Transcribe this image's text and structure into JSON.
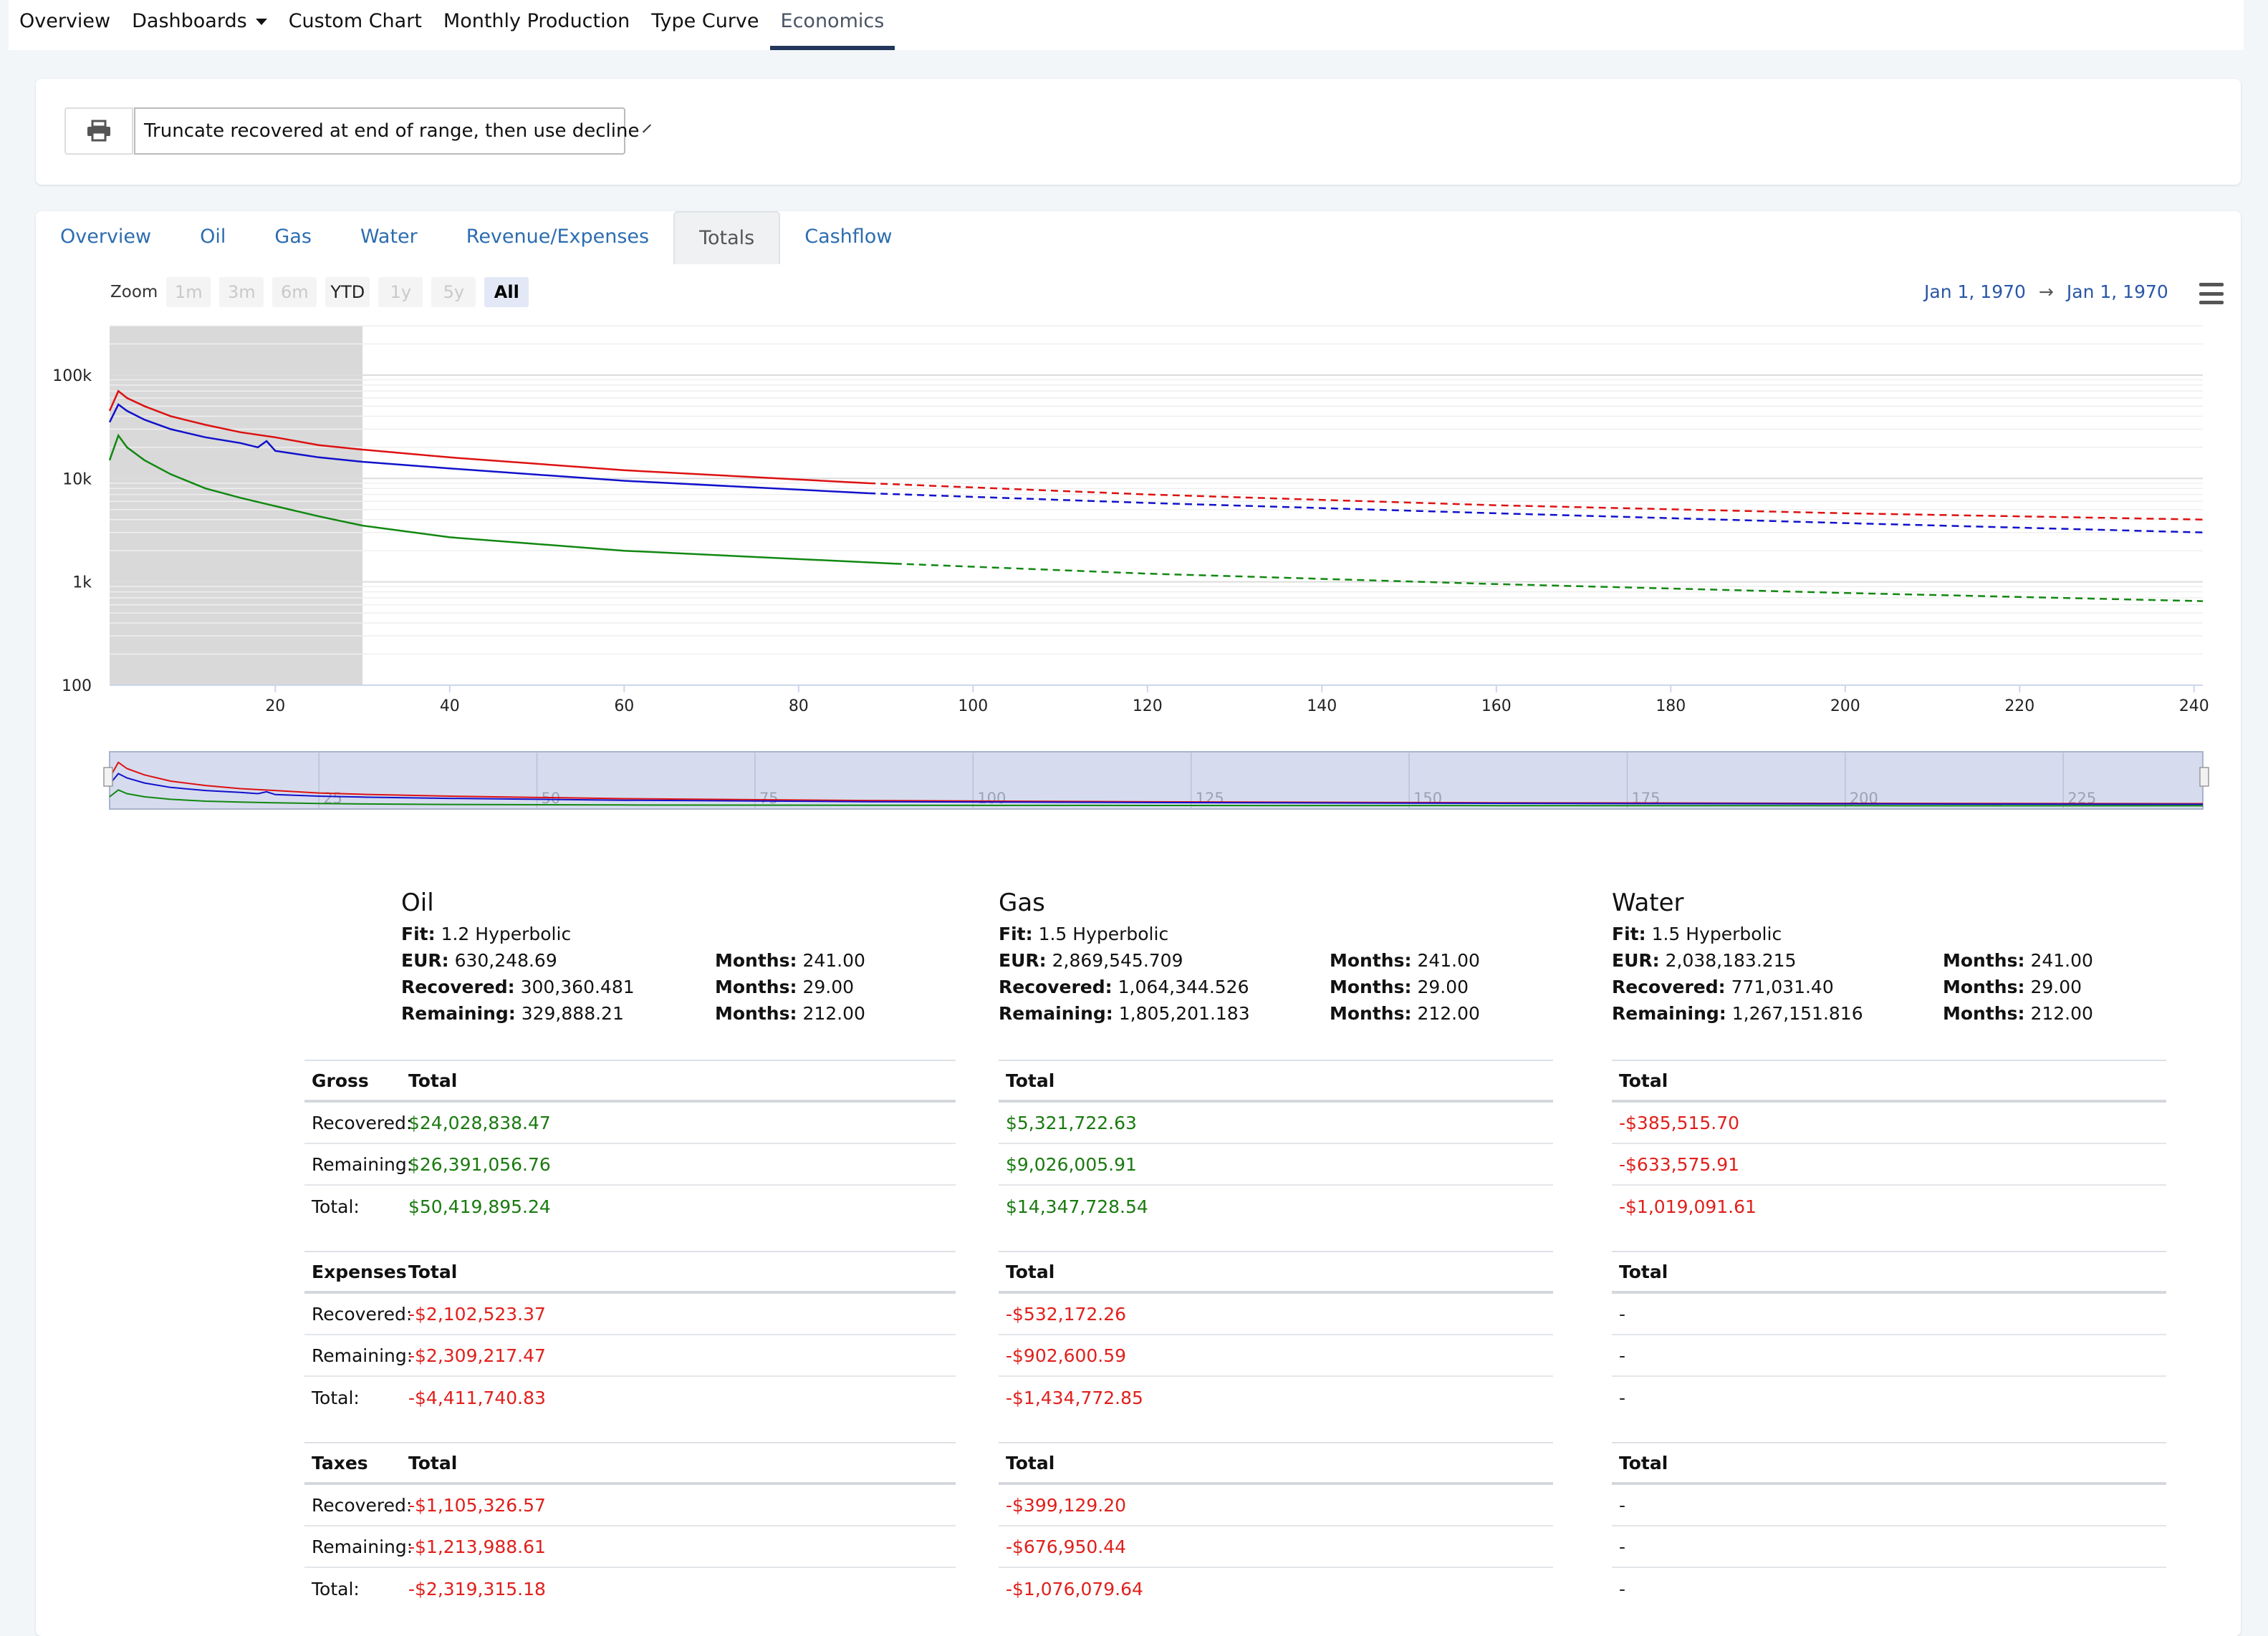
{
  "topnav": {
    "items": [
      "Overview",
      "Dashboards",
      "Custom Chart",
      "Monthly Production",
      "Type Curve",
      "Economics"
    ],
    "active": "Economics"
  },
  "toolbar": {
    "print_icon": "printer-icon",
    "select_value": "Truncate recovered at end of range, then use decline"
  },
  "tabs": {
    "items": [
      "Overview",
      "Oil",
      "Gas",
      "Water",
      "Revenue/Expenses",
      "Totals",
      "Cashflow"
    ],
    "active": "Totals"
  },
  "zoom": {
    "label": "Zoom",
    "buttons": [
      "1m",
      "3m",
      "6m",
      "YTD",
      "1y",
      "5y",
      "All"
    ],
    "selected": "All",
    "enabled": [
      "YTD",
      "All"
    ]
  },
  "range": {
    "from": "Jan 1, 1970",
    "arrow": "→",
    "to": "Jan 1, 1970"
  },
  "chart_data": {
    "type": "line",
    "y_scale": "log",
    "ylim": [
      100,
      300000
    ],
    "xlim": [
      1,
      241
    ],
    "y_ticks": [
      "100k",
      "10k",
      "1k",
      "100"
    ],
    "x_ticks": [
      "20",
      "40",
      "60",
      "80",
      "100",
      "120",
      "140",
      "160",
      "180",
      "200",
      "220",
      "240"
    ],
    "navigator_ticks": [
      "25",
      "50",
      "75",
      "100",
      "125",
      "150",
      "175",
      "200",
      "225"
    ],
    "shaded_range": [
      1,
      30
    ],
    "colors": {
      "oil": "#dd1111",
      "gas": "#1111cc",
      "water": "#118811"
    },
    "series": [
      {
        "color": "#dd1111",
        "actual": [
          [
            1,
            45000
          ],
          [
            2,
            70000
          ],
          [
            3,
            60000
          ],
          [
            5,
            50000
          ],
          [
            8,
            40000
          ],
          [
            12,
            33000
          ],
          [
            16,
            28000
          ],
          [
            20,
            25000
          ],
          [
            25,
            21000
          ],
          [
            30,
            19000
          ]
        ],
        "forecast_start_dashed": 88,
        "forecast": [
          [
            30,
            19000
          ],
          [
            40,
            16000
          ],
          [
            60,
            12000
          ],
          [
            88,
            9000
          ],
          [
            120,
            7000
          ],
          [
            160,
            5500
          ],
          [
            200,
            4600
          ],
          [
            241,
            4000
          ]
        ]
      },
      {
        "color": "#1111cc",
        "actual": [
          [
            1,
            35000
          ],
          [
            2,
            52000
          ],
          [
            3,
            45000
          ],
          [
            5,
            37000
          ],
          [
            8,
            30000
          ],
          [
            12,
            25000
          ],
          [
            16,
            22000
          ],
          [
            18,
            20000
          ],
          [
            19,
            23000
          ],
          [
            20,
            18500
          ],
          [
            25,
            16000
          ],
          [
            30,
            14500
          ]
        ],
        "forecast_start_dashed": 88,
        "forecast": [
          [
            30,
            14500
          ],
          [
            40,
            12500
          ],
          [
            60,
            9500
          ],
          [
            88,
            7200
          ],
          [
            120,
            5800
          ],
          [
            160,
            4600
          ],
          [
            200,
            3700
          ],
          [
            241,
            3000
          ]
        ]
      },
      {
        "color": "#118811",
        "actual": [
          [
            1,
            15000
          ],
          [
            2,
            26000
          ],
          [
            3,
            20000
          ],
          [
            5,
            15000
          ],
          [
            8,
            11000
          ],
          [
            12,
            8000
          ],
          [
            16,
            6500
          ],
          [
            20,
            5400
          ],
          [
            25,
            4300
          ],
          [
            30,
            3500
          ]
        ],
        "forecast_start_dashed": 91,
        "forecast": [
          [
            30,
            3500
          ],
          [
            40,
            2700
          ],
          [
            60,
            2000
          ],
          [
            91,
            1500
          ],
          [
            120,
            1200
          ],
          [
            160,
            950
          ],
          [
            200,
            780
          ],
          [
            241,
            650
          ]
        ]
      }
    ]
  },
  "summary": [
    {
      "name": "Oil",
      "fit_label": "Fit:",
      "fit": "1.2 Hyperbolic",
      "eur_label": "EUR:",
      "eur": "630,248.69",
      "eur_months_label": "Months:",
      "eur_months": "241.00",
      "rec_label": "Recovered:",
      "rec": "300,360.481",
      "rec_months_label": "Months:",
      "rec_months": "29.00",
      "rem_label": "Remaining:",
      "rem": "329,888.21",
      "rem_months_label": "Months:",
      "rem_months": "212.00"
    },
    {
      "name": "Gas",
      "fit_label": "Fit:",
      "fit": "1.5 Hyperbolic",
      "eur_label": "EUR:",
      "eur": "2,869,545.709",
      "eur_months_label": "Months:",
      "eur_months": "241.00",
      "rec_label": "Recovered:",
      "rec": "1,064,344.526",
      "rec_months_label": "Months:",
      "rec_months": "29.00",
      "rem_label": "Remaining:",
      "rem": "1,805,201.183",
      "rem_months_label": "Months:",
      "rem_months": "212.00"
    },
    {
      "name": "Water",
      "fit_label": "Fit:",
      "fit": "1.5 Hyperbolic",
      "eur_label": "EUR:",
      "eur": "2,038,183.215",
      "eur_months_label": "Months:",
      "eur_months": "241.00",
      "rec_label": "Recovered:",
      "rec": "771,031.40",
      "rec_months_label": "Months:",
      "rec_months": "29.00",
      "rem_label": "Remaining:",
      "rem": "1,267,151.816",
      "rem_months_label": "Months:",
      "rem_months": "212.00"
    }
  ],
  "sections": [
    {
      "label": "Gross",
      "header": "Total",
      "row_labels": [
        "Recovered:",
        "Remaining:",
        "Total:"
      ],
      "oil": [
        "$24,028,838.47",
        "$26,391,056.76",
        "$50,419,895.24"
      ],
      "gas": [
        "$5,321,722.63",
        "$9,026,005.91",
        "$14,347,728.54"
      ],
      "water": [
        "-$385,515.70",
        "-$633,575.91",
        "-$1,019,091.61"
      ]
    },
    {
      "label": "Expenses",
      "header": "Total",
      "row_labels": [
        "Recovered:",
        "Remaining:",
        "Total:"
      ],
      "oil": [
        "-$2,102,523.37",
        "-$2,309,217.47",
        "-$4,411,740.83"
      ],
      "gas": [
        "-$532,172.26",
        "-$902,600.59",
        "-$1,434,772.85"
      ],
      "water": [
        "-",
        "-",
        "-"
      ]
    },
    {
      "label": "Taxes",
      "header": "Total",
      "row_labels": [
        "Recovered:",
        "Remaining:",
        "Total:"
      ],
      "oil": [
        "-$1,105,326.57",
        "-$1,213,988.61",
        "-$2,319,315.18"
      ],
      "gas": [
        "-$399,129.20",
        "-$676,950.44",
        "-$1,076,079.64"
      ],
      "water": [
        "-",
        "-",
        "-"
      ]
    }
  ]
}
